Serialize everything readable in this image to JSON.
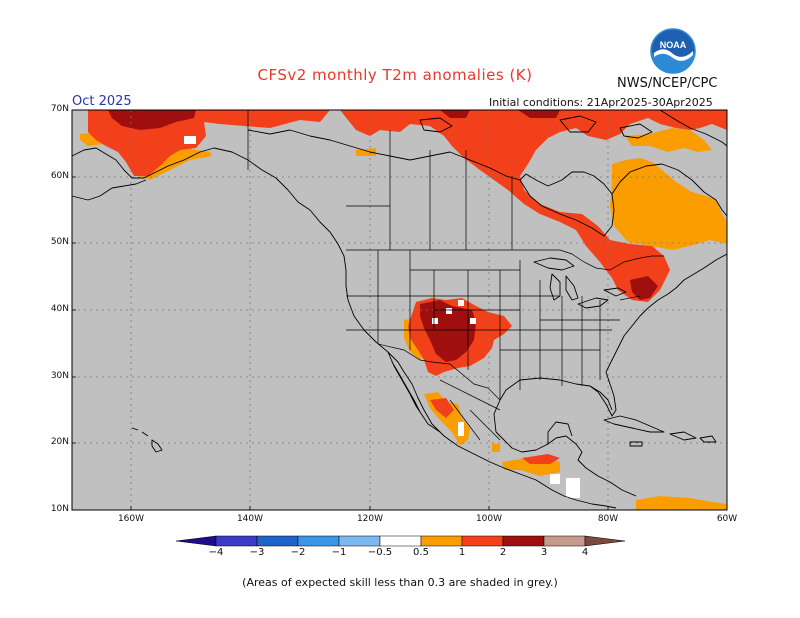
{
  "header": {
    "title": "CFSv2 monthly T2m anomalies (K)",
    "month": "Oct 2025",
    "initial_conditions": "Initial conditions: 21Apr2025-30Apr2025",
    "agency": "NWS/NCEP/CPC"
  },
  "logo": {
    "text": "NOAA",
    "colors": {
      "sky": "#1f5fb0",
      "wave": "#ffffff",
      "sea": "#2c8ad6"
    }
  },
  "map": {
    "lat_labels": [
      "70N",
      "60N",
      "50N",
      "40N",
      "30N",
      "20N",
      "10N"
    ],
    "lon_labels": [
      "160W",
      "140W",
      "120W",
      "100W",
      "80W",
      "60W"
    ],
    "background": "#c0c0c0"
  },
  "colorbar": {
    "labels": [
      "−4",
      "−3",
      "−2",
      "−1",
      "−0.5",
      "0.5",
      "1",
      "2",
      "3",
      "4"
    ],
    "colors": [
      "#1e0d8c",
      "#3b3bc8",
      "#1f64c8",
      "#3c96e8",
      "#7cb8f0",
      "#ffffff",
      "#f99d00",
      "#f2401a",
      "#a00f0f",
      "#c49a8c",
      "#7a4a3c"
    ]
  },
  "footnote": "(Areas of expected skill less than 0.3 are shaded in grey.)"
}
